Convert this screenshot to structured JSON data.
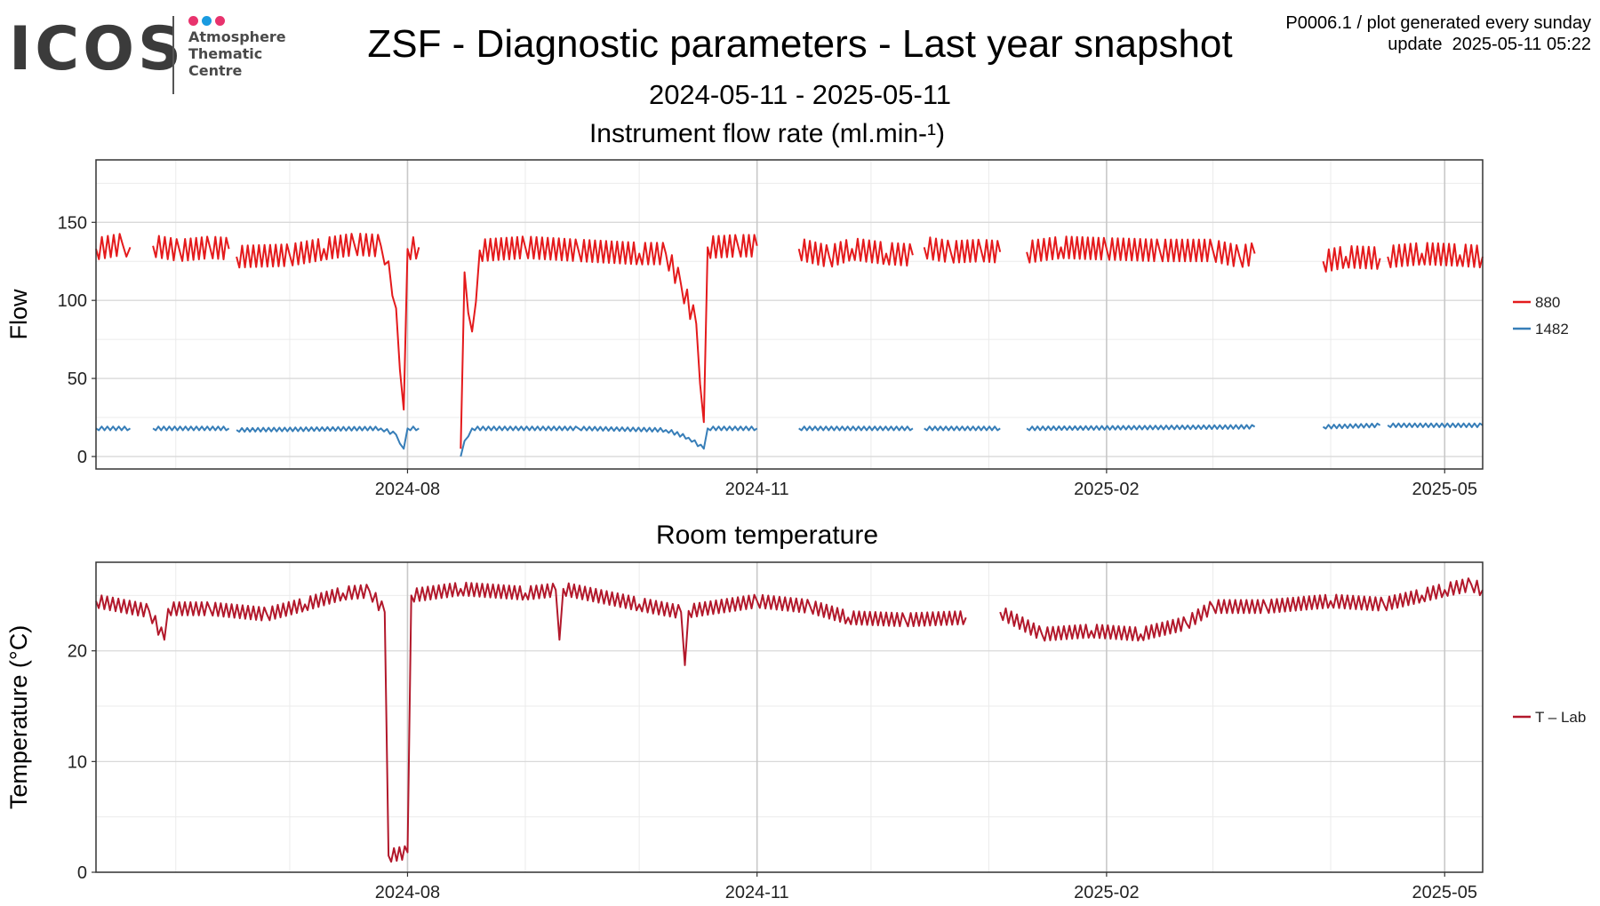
{
  "logo": {
    "wordmark": "ICOS",
    "lines": [
      "Atmosphere",
      "Thematic",
      "Centre"
    ],
    "dot_colors": [
      "#e8336d",
      "#1a9be0",
      "#e8336d"
    ]
  },
  "header": {
    "title": "ZSF - Diagnostic parameters - Last year snapshot",
    "date_range": "2024-05-11 - 2025-05-11",
    "meta_line1": "P0006.1 / plot generated every sunday",
    "meta_line2": "update  2025-05-11 05:22"
  },
  "chart_data": [
    {
      "type": "line",
      "title": "Instrument flow rate (ml.min-¹)",
      "xlabel": "",
      "ylabel": "Flow",
      "x_ticks": [
        "2024-08",
        "2024-11",
        "2025-02",
        "2025-05"
      ],
      "x_tick_dates": [
        "2024-08-01",
        "2024-11-01",
        "2025-02-01",
        "2025-05-01"
      ],
      "xlim": [
        "2024-05-11",
        "2025-05-11"
      ],
      "y_ticks": [
        0,
        50,
        100,
        150
      ],
      "ylim": [
        -8,
        190
      ],
      "grid": true,
      "legend_position": "right",
      "series": [
        {
          "name": "880",
          "color": "#e41a1c",
          "points": [
            [
              "2024-05-11",
              133
            ],
            [
              "2024-05-18",
              136
            ],
            [
              "2024-05-20",
              134
            ],
            null,
            [
              "2024-05-26",
              135
            ],
            [
              "2024-06-02",
              132
            ],
            [
              "2024-06-10",
              134
            ],
            [
              "2024-06-15",
              133
            ],
            null,
            [
              "2024-06-17",
              128
            ],
            [
              "2024-07-01",
              129
            ],
            [
              "2024-07-10",
              133
            ],
            [
              "2024-07-18",
              136
            ],
            [
              "2024-07-25",
              135
            ],
            [
              "2024-07-27",
              125
            ],
            [
              "2024-07-29",
              95
            ],
            [
              "2024-07-31",
              30
            ],
            [
              "2024-08-01",
              133
            ],
            [
              "2024-08-04",
              134
            ],
            null,
            [
              "2024-08-15",
              5
            ],
            [
              "2024-08-16",
              118
            ],
            [
              "2024-08-18",
              80
            ],
            [
              "2024-08-20",
              132
            ],
            [
              "2024-09-01",
              134
            ],
            [
              "2024-09-15",
              132
            ],
            [
              "2024-10-01",
              130
            ],
            [
              "2024-10-08",
              130
            ],
            [
              "2024-10-12",
              110
            ],
            [
              "2024-10-16",
              85
            ],
            [
              "2024-10-18",
              22
            ],
            [
              "2024-10-19",
              134
            ],
            [
              "2024-10-27",
              135
            ],
            [
              "2024-11-01",
              135
            ],
            null,
            [
              "2024-11-12",
              133
            ],
            [
              "2024-11-20",
              128
            ],
            [
              "2024-11-26",
              133
            ],
            [
              "2024-12-05",
              130
            ],
            [
              "2024-12-12",
              129
            ],
            null,
            [
              "2024-12-15",
              134
            ],
            [
              "2024-12-22",
              131
            ],
            [
              "2024-12-30",
              132
            ],
            [
              "2025-01-04",
              131
            ],
            null,
            [
              "2025-01-11",
              131
            ],
            [
              "2025-01-20",
              134
            ],
            [
              "2025-02-01",
              133
            ],
            [
              "2025-02-15",
              132
            ],
            [
              "2025-03-01",
              132
            ],
            [
              "2025-03-08",
              128
            ],
            [
              "2025-03-12",
              130
            ],
            null,
            [
              "2025-03-30",
              125
            ],
            [
              "2025-04-05",
              128
            ],
            [
              "2025-04-14",
              127
            ],
            null,
            [
              "2025-04-16",
              128
            ],
            [
              "2025-04-25",
              130
            ],
            [
              "2025-05-05",
              129
            ],
            [
              "2025-05-11",
              128
            ]
          ]
        },
        {
          "name": "1482",
          "color": "#377eb8",
          "points": [
            [
              "2024-05-11",
              18
            ],
            [
              "2024-05-20",
              18
            ],
            null,
            [
              "2024-05-26",
              18
            ],
            [
              "2024-06-15",
              18
            ],
            null,
            [
              "2024-06-17",
              17
            ],
            [
              "2024-07-25",
              18
            ],
            [
              "2024-07-29",
              14
            ],
            [
              "2024-07-31",
              5
            ],
            [
              "2024-08-01",
              18
            ],
            [
              "2024-08-04",
              18
            ],
            null,
            [
              "2024-08-15",
              0
            ],
            [
              "2024-08-16",
              10
            ],
            [
              "2024-08-18",
              18
            ],
            [
              "2024-09-15",
              18
            ],
            [
              "2024-10-08",
              17
            ],
            [
              "2024-10-14",
              12
            ],
            [
              "2024-10-18",
              5
            ],
            [
              "2024-10-19",
              18
            ],
            [
              "2024-11-01",
              18
            ],
            null,
            [
              "2024-11-12",
              18
            ],
            [
              "2024-12-12",
              18
            ],
            null,
            [
              "2024-12-15",
              18
            ],
            [
              "2025-01-04",
              18
            ],
            null,
            [
              "2025-01-11",
              18
            ],
            [
              "2025-03-12",
              19
            ],
            null,
            [
              "2025-03-30",
              19
            ],
            [
              "2025-04-14",
              20
            ],
            null,
            [
              "2025-04-16",
              20
            ],
            [
              "2025-05-11",
              20
            ]
          ]
        }
      ]
    },
    {
      "type": "line",
      "title": "Room temperature",
      "xlabel": "",
      "ylabel": "Temperature (°C)",
      "x_ticks": [
        "2024-08",
        "2024-11",
        "2025-02",
        "2025-05"
      ],
      "x_tick_dates": [
        "2024-08-01",
        "2024-11-01",
        "2025-02-01",
        "2025-05-01"
      ],
      "xlim": [
        "2024-05-11",
        "2025-05-11"
      ],
      "y_ticks": [
        0,
        10,
        20
      ],
      "ylim": [
        0,
        28
      ],
      "grid": true,
      "legend_position": "right",
      "series": [
        {
          "name": "T – Lab",
          "color": "#b2182b",
          "points": [
            [
              "2024-05-11",
              24.5
            ],
            [
              "2024-05-25",
              23.6
            ],
            [
              "2024-05-29",
              21.0
            ],
            [
              "2024-05-30",
              23.8
            ],
            [
              "2024-06-10",
              23.8
            ],
            [
              "2024-06-25",
              23.3
            ],
            [
              "2024-07-05",
              24.2
            ],
            [
              "2024-07-15",
              25.2
            ],
            [
              "2024-07-22",
              25.4
            ],
            [
              "2024-07-26",
              23.5
            ],
            [
              "2024-07-27",
              1.5
            ],
            [
              "2024-08-01",
              1.8
            ],
            [
              "2024-08-02",
              25.0
            ],
            [
              "2024-08-15",
              25.6
            ],
            [
              "2024-09-01",
              25.2
            ],
            [
              "2024-09-09",
              25.5
            ],
            [
              "2024-09-10",
              21.0
            ],
            [
              "2024-09-11",
              25.6
            ],
            [
              "2024-10-01",
              24.2
            ],
            [
              "2024-10-12",
              23.5
            ],
            [
              "2024-10-13",
              18.7
            ],
            [
              "2024-10-14",
              23.6
            ],
            [
              "2024-11-01",
              24.5
            ],
            [
              "2024-11-15",
              24.0
            ],
            [
              "2024-11-25",
              23.0
            ],
            [
              "2024-12-10",
              22.8
            ],
            [
              "2024-12-26",
              23.0
            ],
            null,
            [
              "2025-01-04",
              23.5
            ],
            [
              "2025-01-15",
              21.5
            ],
            [
              "2025-01-28",
              21.8
            ],
            [
              "2025-02-10",
              21.5
            ],
            [
              "2025-02-22",
              22.5
            ],
            [
              "2025-03-01",
              24.0
            ],
            [
              "2025-03-15",
              24.0
            ],
            [
              "2025-04-01",
              24.5
            ],
            [
              "2025-04-15",
              24.2
            ],
            [
              "2025-04-25",
              25.0
            ],
            [
              "2025-05-01",
              25.5
            ],
            [
              "2025-05-08",
              26.0
            ],
            [
              "2025-05-11",
              25.5
            ]
          ]
        }
      ]
    }
  ]
}
